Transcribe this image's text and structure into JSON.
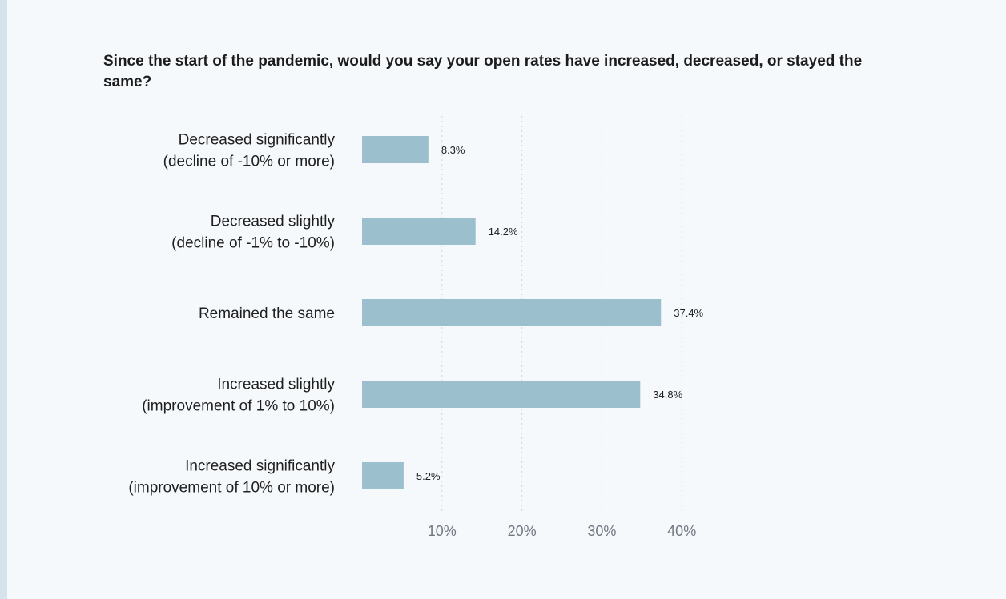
{
  "chart_data": {
    "type": "bar",
    "orientation": "horizontal",
    "title": "Since the start of the pandemic, would you say your open rates have increased, decreased, or stayed the same?",
    "categories": [
      [
        "Decreased significantly",
        "(decline of -10% or more)"
      ],
      [
        "Decreased slightly",
        "(decline of -1% to -10%)"
      ],
      [
        "Remained the same"
      ],
      [
        "Increased slightly",
        "(improvement of 1% to 10%)"
      ],
      [
        "Increased significantly",
        "(improvement of 10% or more)"
      ]
    ],
    "values": [
      8.3,
      14.2,
      37.4,
      34.8,
      5.2
    ],
    "value_labels": [
      "8.3%",
      "14.2%",
      "37.4%",
      "34.8%",
      "5.2%"
    ],
    "xlim": [
      0,
      40
    ],
    "x_ticks": [
      10,
      20,
      30,
      40
    ],
    "x_tick_labels": [
      "10%",
      "20%",
      "30%",
      "40%"
    ],
    "xlabel": "",
    "ylabel": "",
    "grid": "vertical-dotted",
    "bar_color": "#9bbfcc",
    "grid_color": "#d6dade"
  }
}
